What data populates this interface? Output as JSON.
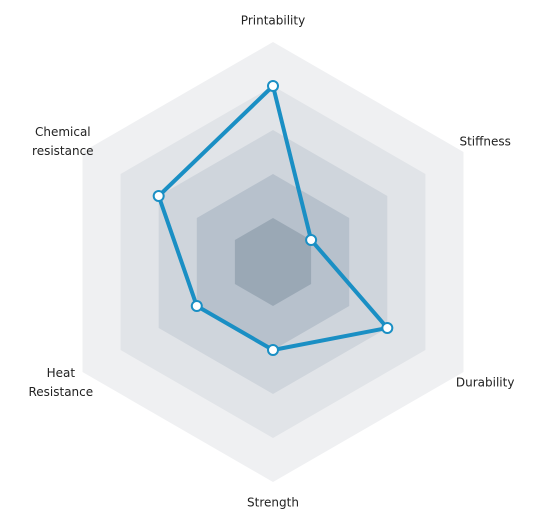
{
  "chart_data": {
    "type": "radar",
    "categories": [
      "Printability",
      "Stiffness",
      "Durability",
      "Strength",
      "Heat Resistance",
      "Chemical resistance"
    ],
    "values": [
      4,
      1,
      3,
      2,
      2,
      3
    ],
    "color": "#1a8fc4",
    "rlim": [
      0,
      5
    ],
    "rticks": [
      1,
      2,
      3,
      4,
      5
    ],
    "ring_colors": [
      "#9aa8b5",
      "#b7c1cc",
      "#cfd5dc",
      "#e1e4e8",
      "#eff0f2"
    ],
    "grid": true
  }
}
